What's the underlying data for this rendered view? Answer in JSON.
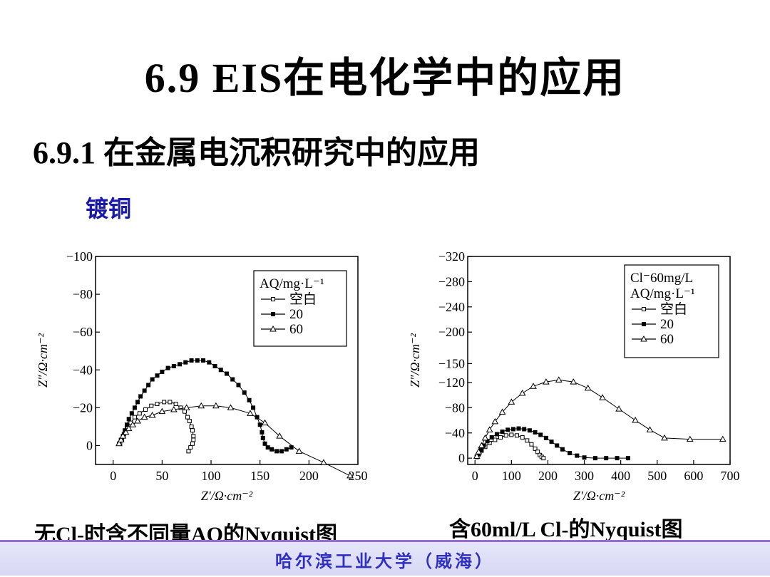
{
  "slide": {
    "title": "6.9   EIS在电化学中的应用",
    "subtitle": "6.9.1 在金属电沉积研究中的应用",
    "tag": "镀铜",
    "footer": "哈尔滨工业大学（威海）"
  },
  "colors": {
    "footer_text": "#3030c0",
    "tag": "#1a1aa8",
    "footer_line": "#9a6bd0"
  },
  "chart_data": [
    {
      "type": "scatter",
      "caption": "无Cl-时含不同量AQ的Nyquist图",
      "xlabel": "Z′/Ω·cm⁻²",
      "ylabel": "Z″/Ω·cm⁻²",
      "xlim": [
        -18,
        250
      ],
      "ylim": [
        -100,
        10
      ],
      "xticks": [
        0,
        50,
        100,
        150,
        200,
        250
      ],
      "xtick_labels": [
        "0",
        "50",
        "100",
        "150",
        "200",
        "250"
      ],
      "yticks": [
        -100,
        -80,
        -60,
        -40,
        -20,
        0
      ],
      "ytick_labels": [
        "−100",
        "−80",
        "−60",
        "−40",
        "−20",
        "0"
      ],
      "legend_title": "AQ/mg·L⁻¹",
      "legend_position": "top-right",
      "series": [
        {
          "name": "空白",
          "marker": "square-open",
          "x": [
            7,
            9,
            11,
            14,
            18,
            22,
            27,
            33,
            39,
            45,
            52,
            58,
            64,
            69,
            73,
            76,
            78,
            80,
            81,
            82,
            82,
            81,
            79,
            77
          ],
          "y": [
            -1,
            -3,
            -6,
            -9,
            -12,
            -15,
            -17,
            -19,
            -21,
            -22,
            -23,
            -23,
            -22,
            -20,
            -18,
            -15,
            -13,
            -10,
            -8,
            -5,
            -3,
            -1,
            1,
            3
          ]
        },
        {
          "name": "20",
          "marker": "square-filled",
          "x": [
            6,
            8,
            10,
            12,
            14,
            16,
            19,
            22,
            25,
            28,
            32,
            36,
            40,
            45,
            50,
            56,
            62,
            68,
            74,
            80,
            86,
            92,
            98,
            104,
            110,
            116,
            122,
            128,
            134,
            139,
            143,
            147,
            150,
            152,
            153,
            155,
            158,
            162,
            167,
            172,
            177,
            182
          ],
          "y": [
            -1,
            -3,
            -5,
            -8,
            -11,
            -14,
            -17,
            -20,
            -23,
            -26,
            -29,
            -32,
            -35,
            -37,
            -39,
            -41,
            -42,
            -43,
            -44,
            -45,
            -45,
            -45,
            -44,
            -42,
            -40,
            -38,
            -35,
            -32,
            -28,
            -24,
            -20,
            -15,
            -11,
            -7,
            -4,
            -1,
            1,
            2,
            3,
            3,
            2,
            1
          ]
        },
        {
          "name": "60",
          "marker": "triangle-open",
          "x": [
            6,
            8,
            10,
            13,
            16,
            20,
            25,
            32,
            40,
            50,
            62,
            75,
            90,
            105,
            120,
            140,
            155,
            170,
            190,
            215,
            242
          ],
          "y": [
            -1,
            -3,
            -5,
            -7,
            -9,
            -11,
            -13,
            -15,
            -16,
            -18,
            -19,
            -20,
            -21,
            -21,
            -20,
            -17,
            -12,
            -5,
            3,
            9,
            16
          ]
        }
      ]
    },
    {
      "type": "scatter",
      "caption": "含60ml/L Cl-的Nyquist图",
      "xlabel": "Z′/Ω·cm⁻²",
      "ylabel": "Z″/Ω·cm⁻²",
      "xlim": [
        -20,
        700
      ],
      "ylim": [
        -320,
        10
      ],
      "xticks": [
        0,
        100,
        200,
        300,
        400,
        500,
        600,
        700
      ],
      "xtick_labels": [
        "0",
        "100",
        "200",
        "300",
        "400",
        "500",
        "600",
        "700"
      ],
      "yticks": [
        -320,
        -280,
        -240,
        -200,
        -150,
        -120,
        -80,
        -40,
        0
      ],
      "ytick_labels": [
        "−320",
        "−280",
        "−240",
        "−200",
        "−150",
        "−120",
        "−80",
        "−40",
        "0"
      ],
      "legend_title": "Cl⁻60mg/L  AQ/mg·L⁻¹",
      "legend_position": "top-right",
      "series": [
        {
          "name": "空白",
          "marker": "square-open",
          "x": [
            5,
            10,
            18,
            28,
            40,
            55,
            70,
            85,
            100,
            115,
            130,
            143,
            155,
            165,
            172,
            178,
            183,
            188
          ],
          "y": [
            -2,
            -6,
            -12,
            -18,
            -24,
            -29,
            -33,
            -36,
            -37,
            -36,
            -33,
            -28,
            -22,
            -15,
            -10,
            -5,
            -2,
            0
          ]
        },
        {
          "name": "20",
          "marker": "square-filled",
          "x": [
            5,
            10,
            16,
            24,
            34,
            46,
            60,
            75,
            90,
            105,
            120,
            135,
            150,
            165,
            180,
            195,
            210,
            225,
            240,
            260,
            280,
            300,
            330,
            360,
            390,
            420
          ],
          "y": [
            -2,
            -7,
            -13,
            -20,
            -27,
            -33,
            -38,
            -42,
            -45,
            -46,
            -47,
            -46,
            -44,
            -41,
            -37,
            -32,
            -26,
            -20,
            -14,
            -8,
            -4,
            -1,
            0,
            0,
            0,
            0
          ]
        },
        {
          "name": "60",
          "marker": "triangle-open",
          "x": [
            5,
            10,
            18,
            28,
            40,
            55,
            75,
            100,
            130,
            160,
            195,
            230,
            270,
            310,
            350,
            395,
            440,
            480,
            520,
            590,
            680
          ],
          "y": [
            -3,
            -10,
            -20,
            -32,
            -45,
            -58,
            -73,
            -89,
            -103,
            -114,
            -121,
            -124,
            -121,
            -111,
            -96,
            -78,
            -60,
            -45,
            -32,
            -30,
            -30
          ]
        }
      ]
    }
  ]
}
